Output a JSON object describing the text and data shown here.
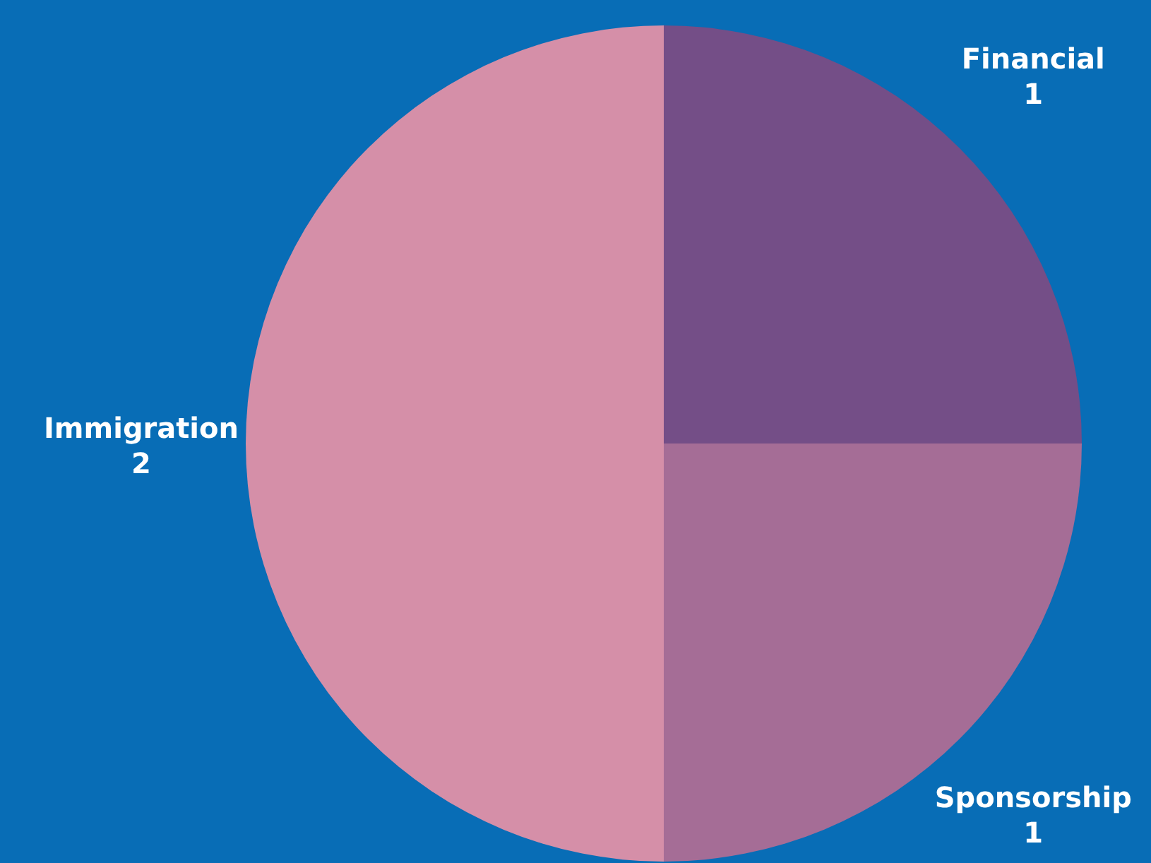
{
  "chart_data": {
    "type": "pie",
    "categories": [
      "Financial",
      "Sponsorship",
      "Immigration"
    ],
    "values": [
      1,
      1,
      2
    ],
    "colors": [
      "#744e87",
      "#a56d96",
      "#d58fa8"
    ],
    "data_labels": true
  }
}
